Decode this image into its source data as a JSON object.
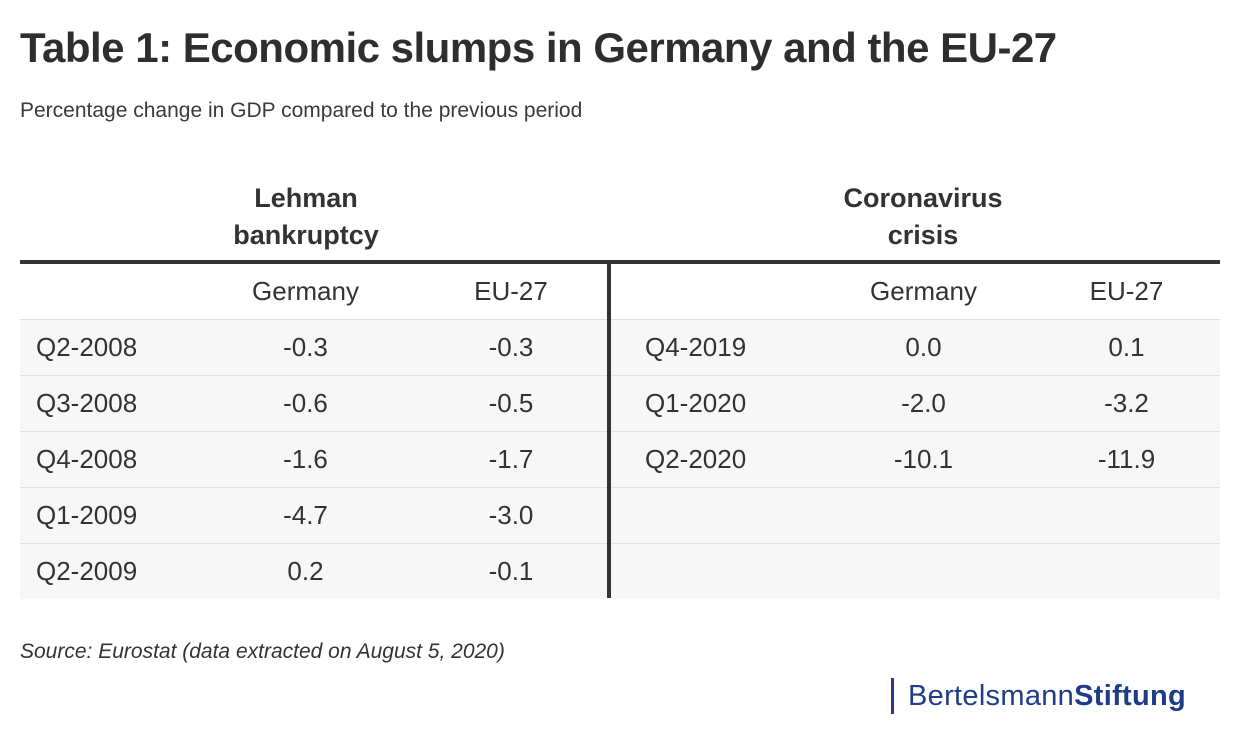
{
  "title": "Table 1: Economic slumps in Germany and the EU-27",
  "subtitle": "Percentage change in GDP compared to the previous period",
  "source": "Source: Eurostat (data extracted on August 5, 2020)",
  "logo": {
    "part1": "Bertelsmann",
    "part2": "Stiftung",
    "color": "#1f3c88"
  },
  "chart_data": {
    "type": "table",
    "title": "Table 1: Economic slumps in Germany and the EU-27",
    "subtitle": "Percentage change in GDP compared to the previous period",
    "groups": [
      {
        "name": "Lehman\nbankruptcy",
        "columns": [
          "Germany",
          "EU-27"
        ],
        "rows": [
          {
            "period": "Q2-2008",
            "values": [
              "-0.3",
              "-0.3"
            ]
          },
          {
            "period": "Q3-2008",
            "values": [
              "-0.6",
              "-0.5"
            ]
          },
          {
            "period": "Q4-2008",
            "values": [
              "-1.6",
              "-1.7"
            ]
          },
          {
            "period": "Q1-2009",
            "values": [
              "-4.7",
              "-3.0"
            ]
          },
          {
            "period": "Q2-2009",
            "values": [
              "0.2",
              "-0.1"
            ]
          }
        ]
      },
      {
        "name": "Coronavirus\ncrisis",
        "columns": [
          "Germany",
          "EU-27"
        ],
        "rows": [
          {
            "period": "Q4-2019",
            "values": [
              "0.0",
              "0.1"
            ]
          },
          {
            "period": "Q1-2020",
            "values": [
              "-2.0",
              "-3.2"
            ]
          },
          {
            "period": "Q2-2020",
            "values": [
              "-10.1",
              "-11.9"
            ]
          },
          {
            "period": "",
            "values": [
              "",
              ""
            ]
          },
          {
            "period": "",
            "values": [
              "",
              ""
            ]
          }
        ]
      }
    ]
  }
}
